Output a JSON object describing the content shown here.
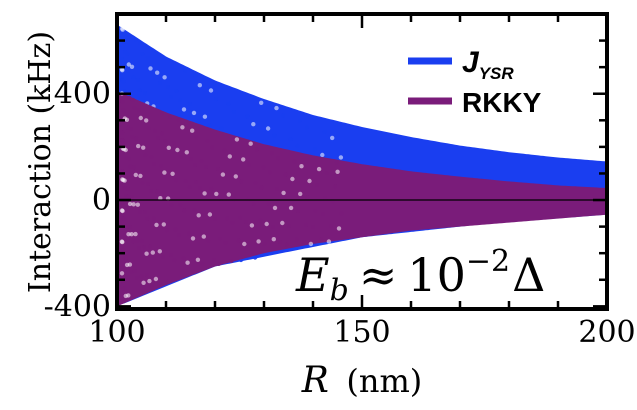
{
  "chart_data": {
    "type": "scatter",
    "title": "",
    "xlabel": "R (nm)",
    "xlabel_var": "R",
    "xlabel_unit": "(nm)",
    "ylabel": "Interaction (kHz)",
    "xlim": [
      100,
      200
    ],
    "ylim": [
      -410,
      700
    ],
    "x_ticks": [
      100,
      150,
      200
    ],
    "y_ticks": [
      -400,
      0,
      400
    ],
    "x_tick_labels": [
      "100",
      "150",
      "200"
    ],
    "y_tick_labels": [
      "-400",
      "0",
      "400"
    ],
    "grid": false,
    "legend_position": "top-right",
    "series": [
      {
        "name": "J_YSR",
        "name_main": "J",
        "name_sub": "YSR",
        "color": "#1a3ef0",
        "envelope_upper": [
          [
            100,
            660
          ],
          [
            110,
            540
          ],
          [
            120,
            450
          ],
          [
            130,
            380
          ],
          [
            140,
            320
          ],
          [
            150,
            275
          ],
          [
            160,
            237
          ],
          [
            170,
            205
          ],
          [
            180,
            180
          ],
          [
            190,
            160
          ],
          [
            200,
            145
          ]
        ],
        "envelope_lower": [
          [
            100,
            -400
          ],
          [
            120,
            -250
          ],
          [
            150,
            -140
          ],
          [
            175,
            -90
          ],
          [
            200,
            -55
          ]
        ]
      },
      {
        "name": "RKKY",
        "color": "#7a1c7a",
        "envelope_upper": [
          [
            100,
            410
          ],
          [
            110,
            330
          ],
          [
            120,
            265
          ],
          [
            130,
            210
          ],
          [
            140,
            168
          ],
          [
            150,
            135
          ],
          [
            160,
            108
          ],
          [
            170,
            88
          ],
          [
            180,
            70
          ],
          [
            190,
            55
          ],
          [
            200,
            45
          ]
        ],
        "envelope_lower": [
          [
            100,
            -400
          ],
          [
            110,
            -320
          ],
          [
            120,
            -250
          ],
          [
            130,
            -200
          ],
          [
            140,
            -165
          ],
          [
            150,
            -140
          ],
          [
            160,
            -115
          ],
          [
            170,
            -100
          ],
          [
            180,
            -85
          ],
          [
            190,
            -70
          ],
          [
            200,
            -55
          ]
        ]
      }
    ],
    "annotation": "E_b ≈ 10^-2 Δ",
    "annotation_parts": {
      "var": "E",
      "sub": "b",
      "approx": "≈",
      "base": "10",
      "exp": "−2",
      "tail": "Δ"
    },
    "zero_line": true
  }
}
